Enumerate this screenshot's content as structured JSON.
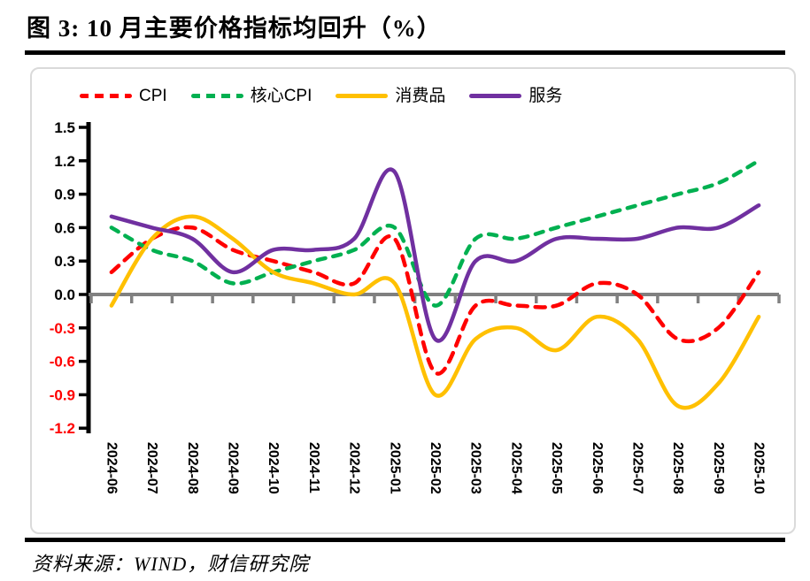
{
  "title": "图 3:  10 月主要价格指标均回升（%）",
  "source": "资料来源：WIND，财信研究院",
  "chart_data": {
    "type": "line",
    "title": "10 月主要价格指标均回升（%）",
    "categories": [
      "2024-06",
      "2024-07",
      "2024-08",
      "2024-09",
      "2024-10",
      "2024-11",
      "2024-12",
      "2025-01",
      "2025-02",
      "2025-03",
      "2025-04",
      "2025-05",
      "2025-06",
      "2025-07",
      "2025-08",
      "2025-09",
      "2025-10"
    ],
    "series": [
      {
        "id": "cpi",
        "name": "CPI",
        "color": "#FF0000",
        "line_style": "dashed",
        "dash": "11 9",
        "values": [
          0.2,
          0.5,
          0.6,
          0.4,
          0.3,
          0.2,
          0.1,
          0.5,
          -0.7,
          -0.1,
          -0.1,
          -0.1,
          0.1,
          0.0,
          -0.4,
          -0.3,
          0.2
        ]
      },
      {
        "id": "core-cpi",
        "name": "核心CPI",
        "color": "#00B050",
        "line_style": "dashed",
        "dash": "9 9",
        "values": [
          0.6,
          0.4,
          0.3,
          0.1,
          0.2,
          0.3,
          0.4,
          0.6,
          -0.1,
          0.5,
          0.5,
          0.6,
          0.7,
          0.8,
          0.9,
          1.0,
          1.2
        ]
      },
      {
        "id": "consumer-goods",
        "name": "消费品",
        "color": "#FFC000",
        "line_style": "solid",
        "dash": "",
        "values": [
          -0.1,
          0.5,
          0.7,
          0.5,
          0.2,
          0.1,
          0.0,
          0.1,
          -0.9,
          -0.4,
          -0.3,
          -0.5,
          -0.2,
          -0.4,
          -1.0,
          -0.8,
          -0.2
        ]
      },
      {
        "id": "services",
        "name": "服务",
        "color": "#7030A0",
        "line_style": "solid",
        "dash": "",
        "values": [
          0.7,
          0.6,
          0.5,
          0.2,
          0.4,
          0.4,
          0.5,
          1.1,
          -0.4,
          0.3,
          0.3,
          0.5,
          0.5,
          0.5,
          0.6,
          0.6,
          0.8
        ]
      }
    ],
    "ylim": [
      -1.2,
      1.5
    ],
    "yticks": [
      1.5,
      1.2,
      0.9,
      0.6,
      0.3,
      0.0,
      -0.3,
      -0.6,
      -0.9,
      -1.2
    ],
    "ytick_label_color": "#000000",
    "ytick_label_negative_color": "#FF0000",
    "axis_color": "#000000",
    "zero_line_color": "#808080",
    "grid": false,
    "legend_position": "top"
  }
}
